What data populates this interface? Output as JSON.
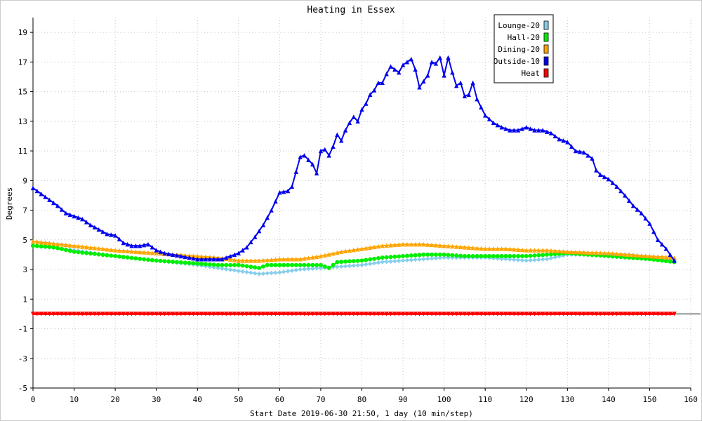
{
  "chart_data": {
    "type": "line",
    "title": "Heating in Essex",
    "xlabel": "Start Date 2019-06-30 21:50, 1 day (10 min/step)",
    "ylabel": "Degrees",
    "xlim": [
      0,
      160
    ],
    "ylim": [
      -5,
      20
    ],
    "x_ticks": [
      0,
      10,
      20,
      30,
      40,
      50,
      60,
      70,
      80,
      90,
      100,
      110,
      120,
      130,
      140,
      150,
      160
    ],
    "y_ticks": [
      -5,
      -3,
      -1,
      1,
      3,
      5,
      7,
      9,
      11,
      13,
      15,
      17,
      19
    ],
    "grid": true,
    "legend_position": "top-right",
    "series": [
      {
        "name": "Lounge-20",
        "color": "#87ceeb",
        "marker": "diamond",
        "points": [
          [
            0,
            4.6
          ],
          [
            10,
            4.3
          ],
          [
            20,
            3.9
          ],
          [
            30,
            3.6
          ],
          [
            40,
            3.3
          ],
          [
            45,
            3.1
          ],
          [
            50,
            2.9
          ],
          [
            55,
            2.7
          ],
          [
            60,
            2.8
          ],
          [
            65,
            3.0
          ],
          [
            70,
            3.1
          ],
          [
            75,
            3.2
          ],
          [
            80,
            3.3
          ],
          [
            85,
            3.5
          ],
          [
            90,
            3.6
          ],
          [
            95,
            3.7
          ],
          [
            100,
            3.8
          ],
          [
            105,
            3.8
          ],
          [
            110,
            3.8
          ],
          [
            115,
            3.7
          ],
          [
            120,
            3.6
          ],
          [
            125,
            3.7
          ],
          [
            130,
            4.0
          ],
          [
            135,
            4.0
          ],
          [
            140,
            4.0
          ],
          [
            145,
            4.0
          ],
          [
            150,
            3.8
          ],
          [
            156,
            3.6
          ]
        ]
      },
      {
        "name": "Hall-20",
        "color": "#00ee00",
        "marker": "circle",
        "points": [
          [
            0,
            4.6
          ],
          [
            5,
            4.5
          ],
          [
            10,
            4.2
          ],
          [
            20,
            3.9
          ],
          [
            30,
            3.6
          ],
          [
            40,
            3.4
          ],
          [
            45,
            3.3
          ],
          [
            50,
            3.3
          ],
          [
            55,
            3.1
          ],
          [
            57,
            3.3
          ],
          [
            60,
            3.3
          ],
          [
            65,
            3.3
          ],
          [
            70,
            3.3
          ],
          [
            72,
            3.1
          ],
          [
            74,
            3.5
          ],
          [
            80,
            3.6
          ],
          [
            85,
            3.8
          ],
          [
            90,
            3.9
          ],
          [
            95,
            4.0
          ],
          [
            100,
            4.0
          ],
          [
            105,
            3.9
          ],
          [
            110,
            3.9
          ],
          [
            115,
            3.9
          ],
          [
            120,
            3.9
          ],
          [
            125,
            4.0
          ],
          [
            130,
            4.1
          ],
          [
            140,
            3.9
          ],
          [
            150,
            3.7
          ],
          [
            156,
            3.5
          ]
        ]
      },
      {
        "name": "Dining-20",
        "color": "#ffa500",
        "marker": "triangle",
        "points": [
          [
            0,
            4.9
          ],
          [
            10,
            4.6
          ],
          [
            20,
            4.3
          ],
          [
            30,
            4.1
          ],
          [
            40,
            3.9
          ],
          [
            45,
            3.8
          ],
          [
            50,
            3.6
          ],
          [
            55,
            3.6
          ],
          [
            60,
            3.7
          ],
          [
            65,
            3.7
          ],
          [
            70,
            3.9
          ],
          [
            75,
            4.2
          ],
          [
            80,
            4.4
          ],
          [
            85,
            4.6
          ],
          [
            90,
            4.7
          ],
          [
            95,
            4.7
          ],
          [
            100,
            4.6
          ],
          [
            105,
            4.5
          ],
          [
            110,
            4.4
          ],
          [
            115,
            4.4
          ],
          [
            120,
            4.3
          ],
          [
            125,
            4.3
          ],
          [
            130,
            4.2
          ],
          [
            140,
            4.1
          ],
          [
            150,
            3.9
          ],
          [
            156,
            3.8
          ]
        ]
      },
      {
        "name": "Outside-10",
        "color": "#0000ee",
        "marker": "triangle",
        "points": [
          [
            0,
            8.5
          ],
          [
            2,
            8.1
          ],
          [
            4,
            7.7
          ],
          [
            6,
            7.3
          ],
          [
            8,
            6.8
          ],
          [
            10,
            6.6
          ],
          [
            12,
            6.4
          ],
          [
            14,
            6.0
          ],
          [
            16,
            5.7
          ],
          [
            18,
            5.4
          ],
          [
            20,
            5.3
          ],
          [
            22,
            4.8
          ],
          [
            24,
            4.6
          ],
          [
            26,
            4.6
          ],
          [
            28,
            4.7
          ],
          [
            30,
            4.3
          ],
          [
            32,
            4.1
          ],
          [
            34,
            4.0
          ],
          [
            36,
            3.9
          ],
          [
            38,
            3.8
          ],
          [
            40,
            3.7
          ],
          [
            42,
            3.7
          ],
          [
            44,
            3.7
          ],
          [
            46,
            3.7
          ],
          [
            48,
            3.9
          ],
          [
            50,
            4.1
          ],
          [
            52,
            4.5
          ],
          [
            54,
            5.2
          ],
          [
            56,
            6.0
          ],
          [
            58,
            7.0
          ],
          [
            60,
            8.2
          ],
          [
            62,
            8.3
          ],
          [
            63,
            8.6
          ],
          [
            64,
            9.6
          ],
          [
            65,
            10.6
          ],
          [
            66,
            10.7
          ],
          [
            67,
            10.4
          ],
          [
            68,
            10.1
          ],
          [
            69,
            9.5
          ],
          [
            70,
            11.0
          ],
          [
            71,
            11.1
          ],
          [
            72,
            10.7
          ],
          [
            73,
            11.3
          ],
          [
            74,
            12.1
          ],
          [
            75,
            11.7
          ],
          [
            76,
            12.4
          ],
          [
            77,
            12.9
          ],
          [
            78,
            13.3
          ],
          [
            79,
            13.0
          ],
          [
            80,
            13.8
          ],
          [
            81,
            14.2
          ],
          [
            82,
            14.8
          ],
          [
            83,
            15.1
          ],
          [
            84,
            15.6
          ],
          [
            85,
            15.6
          ],
          [
            86,
            16.2
          ],
          [
            87,
            16.7
          ],
          [
            88,
            16.5
          ],
          [
            89,
            16.3
          ],
          [
            90,
            16.8
          ],
          [
            91,
            17.0
          ],
          [
            92,
            17.2
          ],
          [
            93,
            16.5
          ],
          [
            94,
            15.3
          ],
          [
            95,
            15.7
          ],
          [
            96,
            16.1
          ],
          [
            97,
            17.0
          ],
          [
            98,
            16.9
          ],
          [
            99,
            17.3
          ],
          [
            100,
            16.1
          ],
          [
            101,
            17.3
          ],
          [
            102,
            16.3
          ],
          [
            103,
            15.4
          ],
          [
            104,
            15.6
          ],
          [
            105,
            14.7
          ],
          [
            106,
            14.8
          ],
          [
            107,
            15.6
          ],
          [
            108,
            14.5
          ],
          [
            110,
            13.4
          ],
          [
            112,
            12.9
          ],
          [
            114,
            12.6
          ],
          [
            116,
            12.4
          ],
          [
            118,
            12.4
          ],
          [
            120,
            12.6
          ],
          [
            122,
            12.4
          ],
          [
            124,
            12.4
          ],
          [
            126,
            12.2
          ],
          [
            128,
            11.8
          ],
          [
            130,
            11.6
          ],
          [
            132,
            11.0
          ],
          [
            134,
            10.9
          ],
          [
            136,
            10.5
          ],
          [
            137,
            9.7
          ],
          [
            138,
            9.4
          ],
          [
            140,
            9.1
          ],
          [
            142,
            8.6
          ],
          [
            144,
            8.0
          ],
          [
            146,
            7.3
          ],
          [
            148,
            6.8
          ],
          [
            150,
            6.1
          ],
          [
            152,
            5.0
          ],
          [
            154,
            4.4
          ],
          [
            156,
            3.6
          ]
        ]
      },
      {
        "name": "Heat",
        "color": "#ff0000",
        "marker": "triangle-down",
        "points": [
          [
            0,
            0
          ],
          [
            156,
            0
          ]
        ]
      }
    ]
  }
}
